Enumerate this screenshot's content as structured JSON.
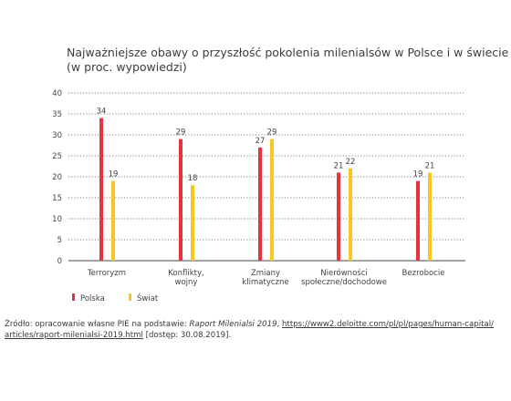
{
  "chart_data": {
    "type": "bar",
    "title": "Najważniejsze obawy o przyszłość pokolenia milenialsów w Polsce i w świecie",
    "subtitle": "(w proc. wypowiedzi)",
    "categories": [
      [
        "Terroryzm"
      ],
      [
        "Konflikty,",
        "wojny"
      ],
      [
        "Zmiany",
        "klimatyczne"
      ],
      [
        "Nierówności",
        "społeczne/dochodowe"
      ],
      [
        "Bezrobocie"
      ]
    ],
    "series": [
      {
        "name": "Polska",
        "color": "#e8333f",
        "values": [
          34,
          29,
          27,
          21,
          19
        ]
      },
      {
        "name": "Świat",
        "color": "#f6c623",
        "values": [
          19,
          18,
          29,
          22,
          21
        ]
      }
    ],
    "ylim": [
      0,
      40
    ],
    "yticks": [
      "0",
      "5",
      "10",
      "15",
      "20",
      "25",
      "30",
      "35",
      "40"
    ],
    "grid": true,
    "legend_position": "bottom-left"
  },
  "source": {
    "prefix": "Źródło: opracowanie własne PIE na podstawie: ",
    "report": "Raport Milenialsi 2019",
    "middle": ", ",
    "url_line1": "https://www2.deloitte.com/pl/pl/pages/human-capital/",
    "url_line2": "articles/raport-milenialsi-2019.html",
    "suffix": " [dostęp: 30.08.2019]."
  }
}
